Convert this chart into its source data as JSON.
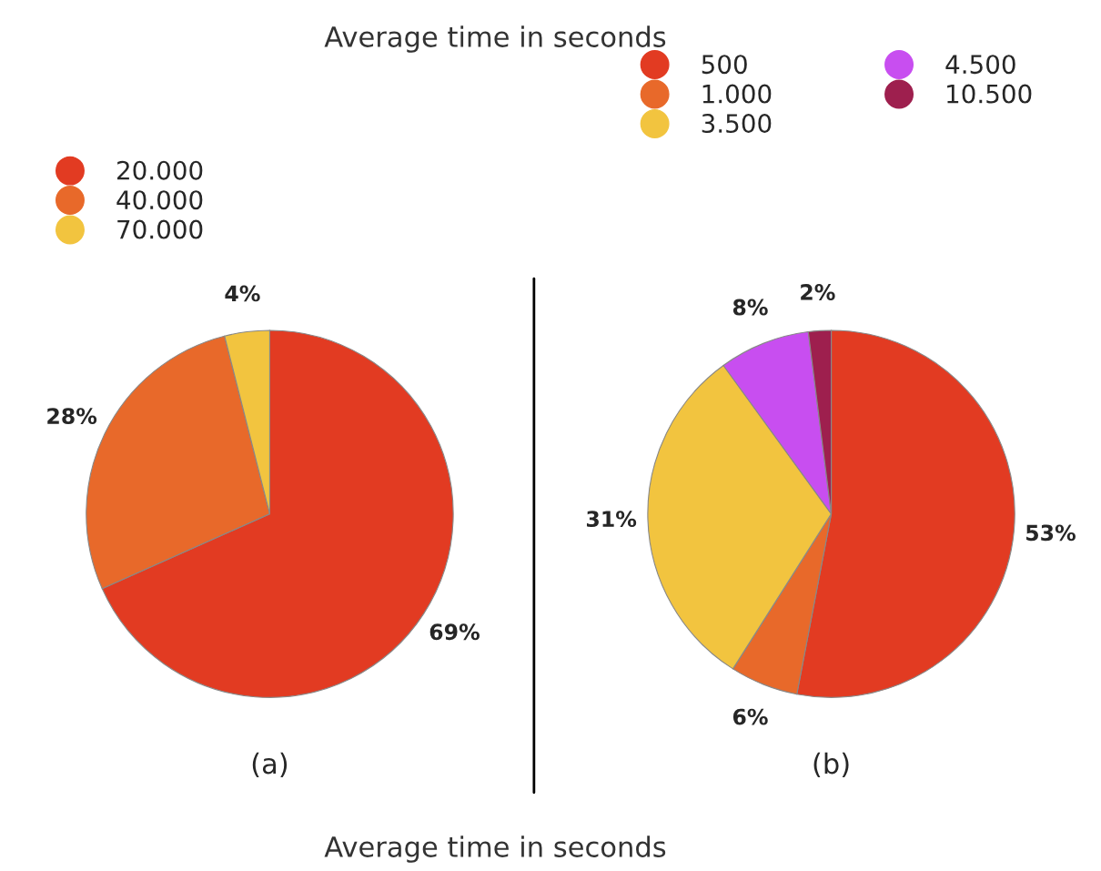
{
  "chart_data": [
    {
      "type": "pie",
      "title": "Average time in seconds",
      "xlabel": "(a)",
      "legend": "top left",
      "categories": [
        "20.000",
        "40.000",
        "70.000"
      ],
      "values": [
        69,
        28,
        4
      ],
      "value_labels": [
        "69%",
        "28%",
        "4%"
      ],
      "colors": [
        "#e23b22",
        "#e8692a",
        "#f2c43f"
      ]
    },
    {
      "type": "pie",
      "xlabel": "(b)",
      "legend": "top",
      "annotations": [
        "Average time in seconds"
      ],
      "categories": [
        "500",
        "1.000",
        "3.500",
        "4.500",
        "10.500"
      ],
      "values": [
        53,
        6,
        31,
        8,
        2
      ],
      "value_labels": [
        "53%",
        "6%",
        "31%",
        "8%",
        "2%"
      ],
      "colors": [
        "#e23b22",
        "#e8692a",
        "#f2c43f",
        "#c84ef0",
        "#9e1f4e"
      ]
    }
  ]
}
